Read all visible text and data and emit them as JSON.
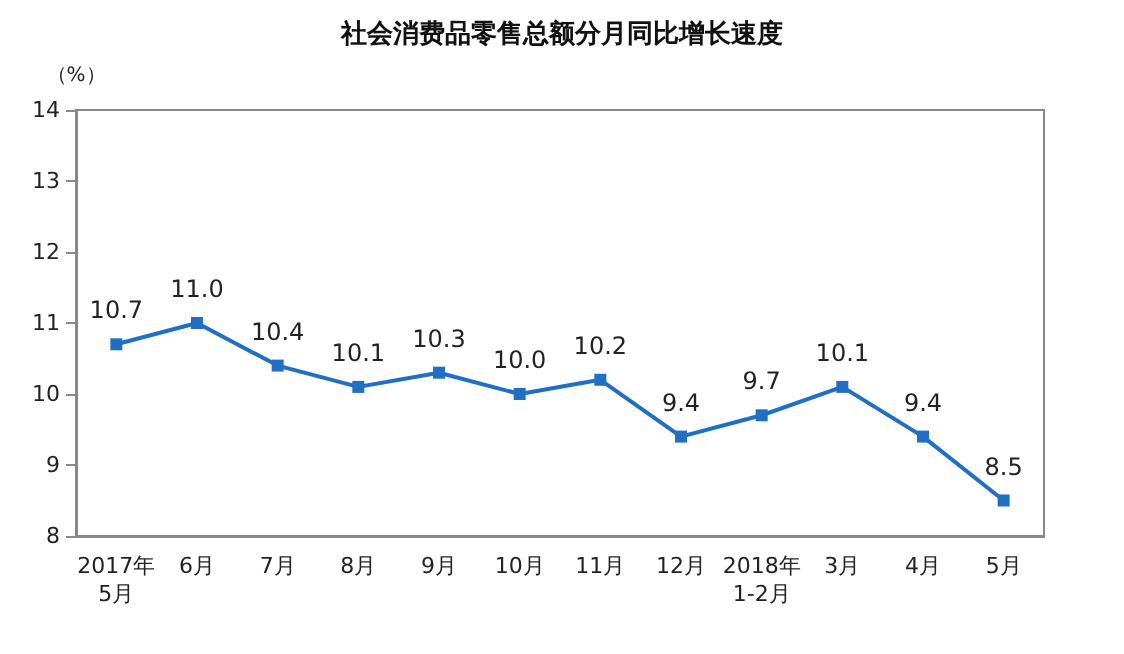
{
  "chart_data": {
    "type": "line",
    "title": "社会消费品零售总额分月同比增长速度",
    "ylabel": "（%）",
    "categories": [
      "2017年\n5月",
      "6月",
      "7月",
      "8月",
      "9月",
      "10月",
      "11月",
      "12月",
      "2018年\n1-2月",
      "3月",
      "4月",
      "5月"
    ],
    "series": [
      {
        "color": "#1f6fc5",
        "values": [
          10.7,
          11.0,
          10.4,
          10.1,
          10.3,
          10.0,
          10.2,
          9.4,
          9.7,
          10.1,
          9.4,
          8.5
        ],
        "value_labels": [
          "10.7",
          "11.0",
          "10.4",
          "10.1",
          "10.3",
          "10.0",
          "10.2",
          "9.4",
          "9.7",
          "10.1",
          "9.4",
          "8.5"
        ]
      }
    ],
    "ylim": [
      8,
      14
    ],
    "yticks": [
      8,
      9,
      10,
      11,
      12,
      13,
      14
    ],
    "grid": false,
    "marker": "square",
    "line_style": "solid"
  }
}
